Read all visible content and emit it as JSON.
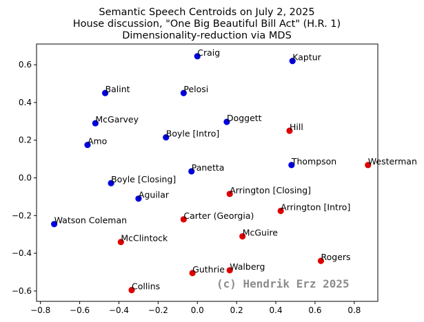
{
  "chart_data": {
    "type": "scatter",
    "title_lines": [
      "Semantic Speech Centroids on July 2, 2025",
      "House discussion, \"One Big Beautiful Bill Act\" (H.R. 1)",
      "Dimensionality-reduction via MDS"
    ],
    "xlabel": "",
    "ylabel": "",
    "xlim": [
      -0.82,
      0.92
    ],
    "ylim": [
      -0.655,
      0.71
    ],
    "xticks": [
      -0.8,
      -0.6,
      -0.4,
      -0.2,
      0.0,
      0.2,
      0.4,
      0.6,
      0.8
    ],
    "xtick_labels": [
      "−0.8",
      "−0.6",
      "−0.4",
      "−0.2",
      "0.0",
      "0.2",
      "0.4",
      "0.6",
      "0.8"
    ],
    "yticks": [
      -0.6,
      -0.4,
      -0.2,
      0.0,
      0.2,
      0.4,
      0.6
    ],
    "ytick_labels": [
      "−0.6",
      "−0.4",
      "−0.2",
      "0.0",
      "0.2",
      "0.4",
      "0.6"
    ],
    "grid": false,
    "watermark": "(c) Hendrik Erz 2025",
    "colors": {
      "blue": "#0000dd",
      "red": "#dd0000",
      "watermark": "#8c8c8c"
    },
    "points": [
      {
        "label": "Craig",
        "x": 0.0,
        "y": 0.645,
        "color": "blue"
      },
      {
        "label": "Kaptur",
        "x": 0.485,
        "y": 0.62,
        "color": "blue"
      },
      {
        "label": "Balint",
        "x": -0.47,
        "y": 0.45,
        "color": "blue"
      },
      {
        "label": "Pelosi",
        "x": -0.07,
        "y": 0.45,
        "color": "blue"
      },
      {
        "label": "McGarvey",
        "x": -0.52,
        "y": 0.29,
        "color": "blue"
      },
      {
        "label": "Doggett",
        "x": 0.15,
        "y": 0.297,
        "color": "blue"
      },
      {
        "label": "Hill",
        "x": 0.47,
        "y": 0.25,
        "color": "red"
      },
      {
        "label": "Boyle [Intro]",
        "x": -0.16,
        "y": 0.215,
        "color": "blue"
      },
      {
        "label": "Amo",
        "x": -0.56,
        "y": 0.175,
        "color": "blue"
      },
      {
        "label": "Thompson",
        "x": 0.48,
        "y": 0.068,
        "color": "blue"
      },
      {
        "label": "Westerman",
        "x": 0.87,
        "y": 0.068,
        "color": "red"
      },
      {
        "label": "Panetta",
        "x": -0.03,
        "y": 0.035,
        "color": "blue"
      },
      {
        "label": "Boyle [Closing]",
        "x": -0.44,
        "y": -0.028,
        "color": "blue"
      },
      {
        "label": "Arrington [Closing]",
        "x": 0.165,
        "y": -0.085,
        "color": "red"
      },
      {
        "label": "Aguilar",
        "x": -0.3,
        "y": -0.11,
        "color": "blue"
      },
      {
        "label": "Arrington [Intro]",
        "x": 0.425,
        "y": -0.175,
        "color": "red"
      },
      {
        "label": "Carter (Georgia)",
        "x": -0.07,
        "y": -0.22,
        "color": "red"
      },
      {
        "label": "Watson Coleman",
        "x": -0.73,
        "y": -0.245,
        "color": "blue"
      },
      {
        "label": "McGuire",
        "x": 0.23,
        "y": -0.31,
        "color": "red"
      },
      {
        "label": "McClintock",
        "x": -0.39,
        "y": -0.34,
        "color": "red"
      },
      {
        "label": "Rogers",
        "x": 0.63,
        "y": -0.44,
        "color": "red"
      },
      {
        "label": "Walberg",
        "x": 0.165,
        "y": -0.49,
        "color": "red"
      },
      {
        "label": "Guthrie",
        "x": -0.025,
        "y": -0.505,
        "color": "red"
      },
      {
        "label": "Collins",
        "x": -0.335,
        "y": -0.595,
        "color": "red"
      }
    ]
  }
}
